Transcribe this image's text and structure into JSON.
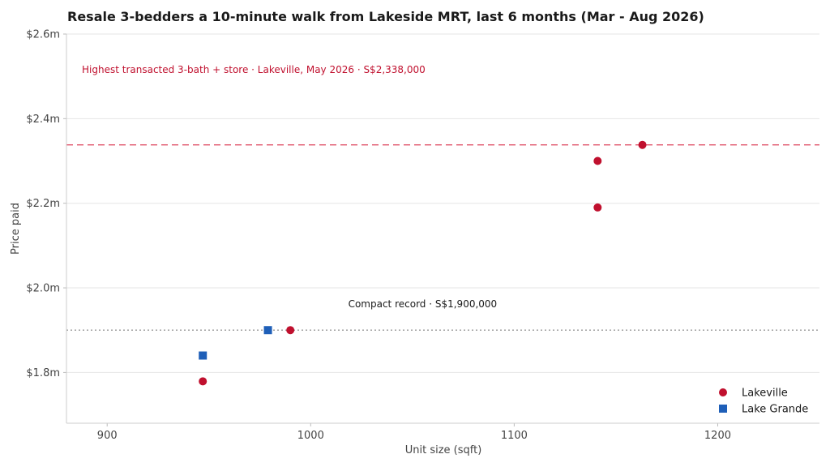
{
  "chart_data": {
    "type": "scatter",
    "title": "Resale 3-bedders a 10-minute walk from Lakeside MRT, last 6 months (Mar - Aug 2026)",
    "xlabel": "Unit size (sqft)",
    "ylabel": "Price paid",
    "xlim": [
      880,
      1250
    ],
    "ylim": [
      1.68,
      2.6
    ],
    "xticks": [
      900,
      1000,
      1100,
      1200
    ],
    "xtick_labels": [
      "900",
      "1000",
      "1100",
      "1200"
    ],
    "yticks": [
      1.8,
      2.0,
      2.2,
      2.4,
      2.6
    ],
    "ytick_labels": [
      "$1.8m",
      "$2.0m",
      "$2.2m",
      "$2.4m",
      "$2.6m"
    ],
    "grid": "horizontal",
    "legend_position": "bottom-right",
    "series": [
      {
        "name": "Lakeville",
        "marker": "circle",
        "color": "#c0102e",
        "x": [
          947,
          990,
          1141,
          1141,
          1163
        ],
        "y": [
          1.779,
          1.9,
          2.19,
          2.3,
          2.338
        ]
      },
      {
        "name": "Lake Grande",
        "marker": "square",
        "color": "#1f5fb8",
        "x": [
          947,
          979
        ],
        "y": [
          1.84,
          1.9
        ]
      }
    ],
    "reference_lines": [
      {
        "y": 2.338,
        "style": "dashed",
        "color": "#e05068",
        "label": "Highest transacted 3-bath + store · Lakeville, May 2026 · S$2,338,000",
        "label_color": "#c0102e"
      },
      {
        "y": 1.9,
        "style": "dotted",
        "color": "#999999",
        "label": "Compact record · S$1,900,000",
        "label_color": "#1a1a1a"
      }
    ]
  }
}
